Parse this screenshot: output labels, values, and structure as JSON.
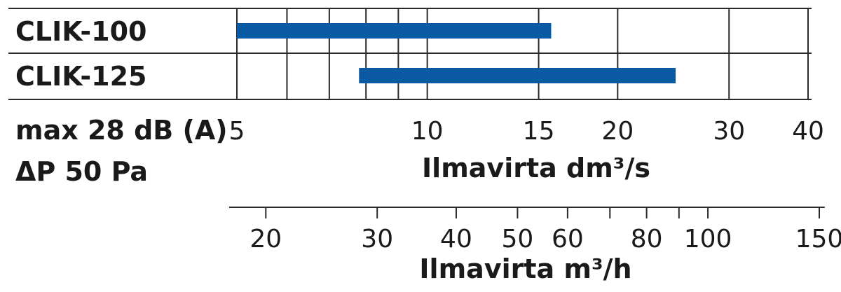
{
  "chart_data": {
    "type": "bar",
    "orientation": "horizontal",
    "x_scale": "log",
    "categories": [
      "CLIK-100",
      "CLIK-125"
    ],
    "ranges": [
      {
        "category": "CLIK-100",
        "start": 5,
        "end": 15.7
      },
      {
        "category": "CLIK-125",
        "start": 7.8,
        "end": 24.7
      }
    ],
    "bar_color": "#0a5aa3",
    "grid": true,
    "note_lines": [
      "max 28 dB (A)",
      "ΔP 50 Pa"
    ],
    "axis_primary": {
      "label": "Ilmavirta dm³/s",
      "range": [
        5,
        40
      ],
      "ticks": [
        5,
        10,
        15,
        20,
        30,
        40
      ],
      "tick_labels": [
        "5",
        "10",
        "15",
        "20",
        "30",
        "40"
      ],
      "gridlines": [
        5,
        6,
        7,
        8,
        9,
        10,
        15,
        20,
        30,
        40
      ]
    },
    "axis_secondary": {
      "label": "Ilmavirta m³/h",
      "ticks": [
        20,
        30,
        40,
        50,
        60,
        80,
        100,
        150
      ],
      "tick_labels": [
        "20",
        "30",
        "40",
        "50",
        "60",
        "80",
        "100",
        "150"
      ],
      "minor_ticks": [
        70,
        90
      ]
    }
  }
}
